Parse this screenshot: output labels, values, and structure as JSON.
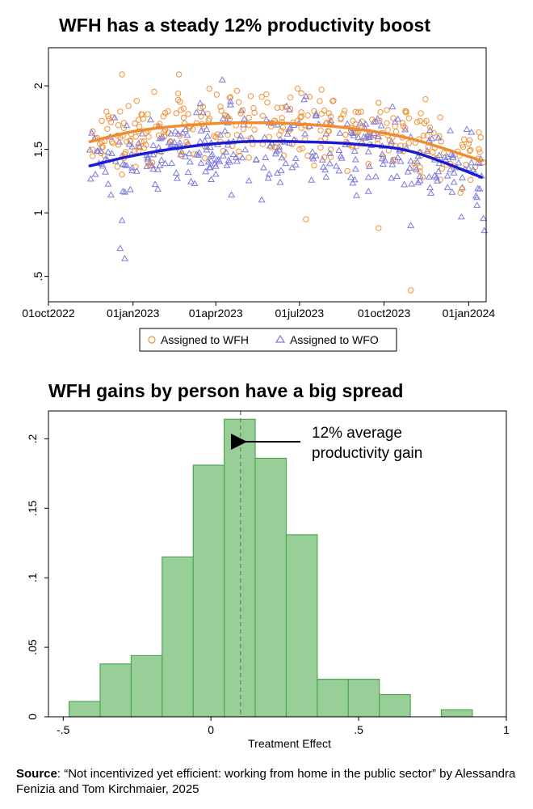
{
  "chart_data": [
    {
      "type": "scatter",
      "title": "WFH has a steady 12% productivity boost",
      "xlabel": "",
      "ylabel": "",
      "x_ticks": [
        "01oct2022",
        "01jan2023",
        "01apr2023",
        "01jul2023",
        "01oct2023",
        "01jan2024"
      ],
      "y_ticks": [
        "2",
        "1.5",
        "1",
        ".5"
      ],
      "ylim": [
        0.3,
        2.3
      ],
      "xlim": [
        "2022-10-01",
        "2024-01-20"
      ],
      "grid": false,
      "legend_position": "bottom",
      "series": [
        {
          "name": "Assigned to WFH",
          "marker": "circle",
          "color": "#f0923a",
          "fit_line": [
            {
              "x": "2022-11-15",
              "y": 1.56
            },
            {
              "x": "2023-01-01",
              "y": 1.64
            },
            {
              "x": "2023-03-01",
              "y": 1.69
            },
            {
              "x": "2023-05-01",
              "y": 1.71
            },
            {
              "x": "2023-07-01",
              "y": 1.7
            },
            {
              "x": "2023-09-01",
              "y": 1.66
            },
            {
              "x": "2023-11-01",
              "y": 1.58
            },
            {
              "x": "2024-01-15",
              "y": 1.41
            }
          ],
          "outliers": [
            {
              "x": "2022-12-20",
              "y": 2.09
            },
            {
              "x": "2023-02-20",
              "y": 2.09
            },
            {
              "x": "2023-07-08",
              "y": 0.95
            },
            {
              "x": "2023-09-25",
              "y": 0.88
            },
            {
              "x": "2023-10-30",
              "y": 0.39
            }
          ]
        },
        {
          "name": "Assigned to WFO",
          "marker": "triangle",
          "color": "#7b7be0",
          "fit_line": [
            {
              "x": "2022-11-15",
              "y": 1.37
            },
            {
              "x": "2023-01-01",
              "y": 1.45
            },
            {
              "x": "2023-03-01",
              "y": 1.52
            },
            {
              "x": "2023-05-01",
              "y": 1.56
            },
            {
              "x": "2023-07-01",
              "y": 1.56
            },
            {
              "x": "2023-09-01",
              "y": 1.54
            },
            {
              "x": "2023-11-01",
              "y": 1.48
            },
            {
              "x": "2024-01-15",
              "y": 1.28
            }
          ],
          "outliers": [
            {
              "x": "2022-12-18",
              "y": 0.72
            },
            {
              "x": "2022-12-23",
              "y": 0.64
            },
            {
              "x": "2022-12-20",
              "y": 0.94
            },
            {
              "x": "2023-10-30",
              "y": 0.9
            },
            {
              "x": "2024-01-18",
              "y": 0.86
            }
          ]
        }
      ]
    },
    {
      "type": "bar",
      "title": "WFH gains by person have a big spread",
      "xlabel": "Treatment Effect",
      "ylabel": "",
      "x_ticks": [
        "-.5",
        "0",
        ".5",
        "1"
      ],
      "y_ticks": [
        "0",
        ".05",
        ".1",
        ".15",
        ".2"
      ],
      "xlim": [
        -0.55,
        1.0
      ],
      "ylim": [
        0,
        0.22
      ],
      "bins": [
        {
          "x0": -0.48,
          "x1": -0.375,
          "value": 0.011
        },
        {
          "x0": -0.375,
          "x1": -0.27,
          "value": 0.038
        },
        {
          "x0": -0.27,
          "x1": -0.165,
          "value": 0.044
        },
        {
          "x0": -0.165,
          "x1": -0.06,
          "value": 0.115
        },
        {
          "x0": -0.06,
          "x1": 0.045,
          "value": 0.181
        },
        {
          "x0": 0.045,
          "x1": 0.15,
          "value": 0.214
        },
        {
          "x0": 0.15,
          "x1": 0.255,
          "value": 0.186
        },
        {
          "x0": 0.255,
          "x1": 0.36,
          "value": 0.131
        },
        {
          "x0": 0.36,
          "x1": 0.465,
          "value": 0.027
        },
        {
          "x0": 0.465,
          "x1": 0.57,
          "value": 0.027
        },
        {
          "x0": 0.57,
          "x1": 0.675,
          "value": 0.016
        },
        {
          "x0": 0.78,
          "x1": 0.885,
          "value": 0.005
        }
      ],
      "mean_line": 0.1,
      "bar_color": "#98cf98",
      "bar_edge": "#4ea64e",
      "annotation": [
        "12% average",
        "productivity gain"
      ]
    }
  ],
  "source": {
    "label": "Source",
    "text": ": “Not incentivized yet efficient: working from home in the public sector” by Alessandra Fenizia and Tom Kirchmaier, 2025"
  }
}
